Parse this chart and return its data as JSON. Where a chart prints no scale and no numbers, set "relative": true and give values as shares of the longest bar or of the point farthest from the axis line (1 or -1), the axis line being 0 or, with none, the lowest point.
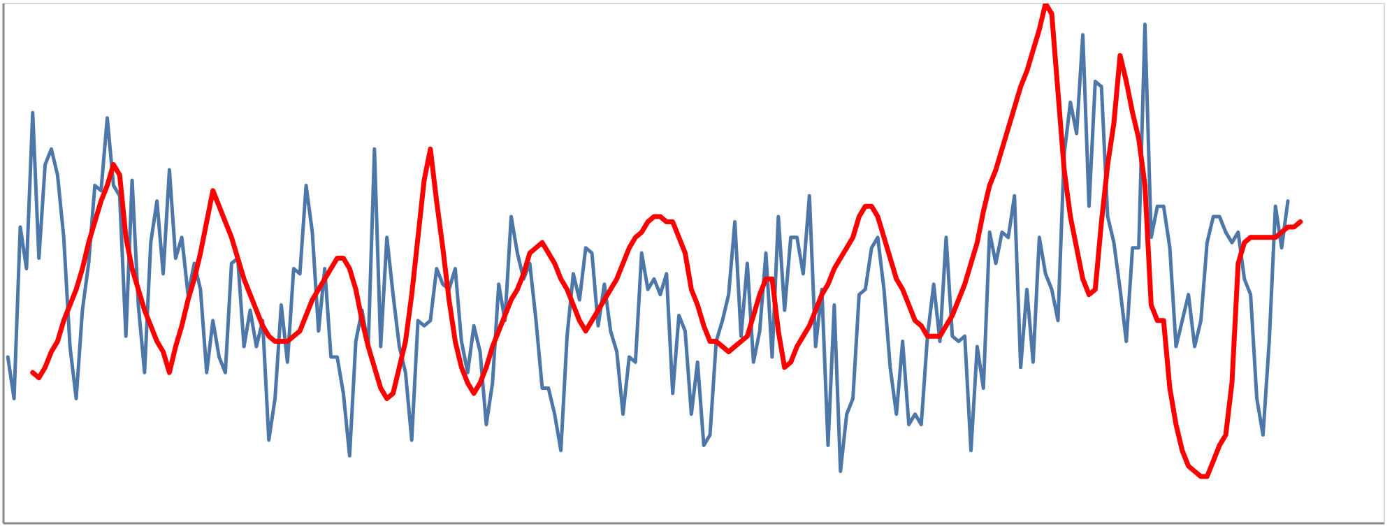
{
  "chart_data": {
    "type": "line",
    "relative": true,
    "tick_labels": false,
    "categories": [
      null,
      null,
      null,
      null,
      null,
      null,
      null,
      null,
      null,
      null,
      null,
      null,
      null,
      null,
      null,
      null,
      null,
      null,
      null,
      null,
      null,
      null,
      null,
      null,
      null,
      null,
      null,
      null,
      null,
      null,
      null,
      null,
      null,
      null,
      null,
      null,
      null,
      null,
      null,
      null,
      null,
      null,
      null,
      null,
      null,
      null,
      null,
      null,
      null,
      null,
      null,
      null,
      null,
      null,
      null,
      null,
      null,
      null,
      null,
      null,
      null,
      null,
      null,
      null,
      null,
      null,
      null,
      null,
      null,
      null,
      null,
      null,
      null,
      null,
      null,
      null,
      null,
      null,
      null,
      null,
      null,
      null,
      null,
      null,
      null,
      null,
      null,
      null,
      null,
      null,
      null,
      null,
      null,
      null,
      null,
      null,
      null,
      null,
      null,
      null,
      null,
      null,
      null,
      null,
      null,
      null,
      null,
      null,
      null,
      null,
      null,
      null,
      null,
      null,
      null,
      null,
      null,
      null,
      null,
      null,
      null,
      null,
      null,
      null,
      null,
      null,
      null,
      null,
      null,
      null,
      null,
      null,
      null,
      null,
      null,
      null,
      null,
      null,
      null,
      null,
      null,
      null,
      null,
      null,
      null,
      null,
      null,
      null,
      null,
      null,
      null,
      null,
      null,
      null,
      null,
      null,
      null,
      null,
      null,
      null,
      null,
      null,
      null,
      null,
      null,
      null,
      null,
      null,
      null,
      null,
      null,
      null,
      null,
      null,
      null,
      null,
      null,
      null,
      null,
      null,
      null,
      null,
      null,
      null,
      null,
      null,
      null,
      null,
      null,
      null,
      null,
      null,
      null,
      null,
      null,
      null,
      null,
      null,
      null,
      null,
      null,
      null,
      null,
      null,
      null,
      null,
      null,
      null,
      null
    ],
    "series": [
      {
        "color": "#4e77a9",
        "values": [
          0.32,
          0.24,
          0.57,
          0.49,
          0.79,
          0.51,
          0.69,
          0.72,
          0.67,
          0.55,
          0.34,
          0.24,
          0.41,
          0.5,
          0.65,
          0.64,
          0.78,
          0.65,
          0.63,
          0.36,
          0.66,
          0.42,
          0.29,
          0.54,
          0.62,
          0.48,
          0.68,
          0.51,
          0.55,
          0.44,
          0.5,
          0.45,
          0.29,
          0.39,
          0.32,
          0.29,
          0.5,
          0.51,
          0.34,
          0.41,
          0.34,
          0.39,
          0.16,
          0.24,
          0.42,
          0.31,
          0.49,
          0.48,
          0.65,
          0.56,
          0.37,
          0.49,
          0.32,
          0.32,
          0.25,
          0.13,
          0.35,
          0.41,
          0.34,
          0.72,
          0.34,
          0.55,
          0.44,
          0.34,
          0.29,
          0.16,
          0.39,
          0.38,
          0.39,
          0.49,
          0.46,
          0.45,
          0.49,
          0.35,
          0.29,
          0.38,
          0.33,
          0.19,
          0.27,
          0.46,
          0.39,
          0.59,
          0.52,
          0.47,
          0.5,
          0.39,
          0.26,
          0.26,
          0.21,
          0.14,
          0.36,
          0.48,
          0.43,
          0.53,
          0.52,
          0.38,
          0.46,
          0.37,
          0.33,
          0.21,
          0.32,
          0.31,
          0.52,
          0.45,
          0.47,
          0.44,
          0.48,
          0.25,
          0.4,
          0.37,
          0.21,
          0.31,
          0.15,
          0.17,
          0.35,
          0.39,
          0.44,
          0.58,
          0.36,
          0.5,
          0.31,
          0.37,
          0.52,
          0.32,
          0.59,
          0.41,
          0.55,
          0.55,
          0.48,
          0.63,
          0.34,
          0.45,
          0.15,
          0.42,
          0.1,
          0.21,
          0.24,
          0.44,
          0.45,
          0.53,
          0.55,
          0.45,
          0.3,
          0.21,
          0.35,
          0.19,
          0.21,
          0.19,
          0.36,
          0.46,
          0.35,
          0.55,
          0.36,
          0.35,
          0.36,
          0.14,
          0.34,
          0.26,
          0.56,
          0.5,
          0.56,
          0.55,
          0.63,
          0.3,
          0.45,
          0.31,
          0.55,
          0.48,
          0.45,
          0.39,
          0.71,
          0.81,
          0.75,
          0.94,
          0.61,
          0.85,
          0.84,
          0.59,
          0.54,
          0.45,
          0.35,
          0.53,
          0.53,
          0.96,
          0.55,
          0.61,
          0.61,
          0.53,
          0.34,
          0.39,
          0.44,
          0.34,
          0.39,
          0.54,
          0.59,
          0.59,
          0.56,
          0.54,
          0.56,
          0.47,
          0.44,
          0.24,
          0.17,
          0.35,
          0.61,
          0.53,
          0.62,
          null,
          null
        ]
      },
      {
        "color": "#ff0000",
        "values": [
          null,
          null,
          null,
          null,
          0.29,
          0.28,
          0.3,
          0.33,
          0.35,
          0.39,
          0.42,
          0.45,
          0.49,
          0.54,
          0.58,
          0.62,
          0.65,
          0.69,
          0.67,
          0.55,
          0.49,
          0.45,
          0.41,
          0.38,
          0.35,
          0.33,
          0.29,
          0.34,
          0.38,
          0.43,
          0.47,
          0.52,
          0.58,
          0.64,
          0.61,
          0.58,
          0.55,
          0.51,
          0.47,
          0.44,
          0.41,
          0.38,
          0.36,
          0.35,
          0.35,
          0.35,
          0.36,
          0.37,
          0.4,
          0.43,
          0.45,
          0.47,
          0.49,
          0.51,
          0.51,
          0.49,
          0.45,
          0.39,
          0.34,
          0.3,
          0.26,
          0.24,
          0.25,
          0.3,
          0.35,
          0.44,
          0.55,
          0.66,
          0.72,
          0.62,
          0.53,
          0.43,
          0.35,
          0.3,
          0.27,
          0.25,
          0.27,
          0.3,
          0.34,
          0.37,
          0.4,
          0.43,
          0.45,
          0.48,
          0.52,
          0.53,
          0.54,
          0.52,
          0.5,
          0.47,
          0.45,
          0.42,
          0.39,
          0.37,
          0.39,
          0.41,
          0.43,
          0.45,
          0.47,
          0.5,
          0.53,
          0.55,
          0.56,
          0.58,
          0.59,
          0.59,
          0.58,
          0.58,
          0.55,
          0.52,
          0.45,
          0.42,
          0.38,
          0.35,
          0.35,
          0.34,
          0.33,
          0.34,
          0.35,
          0.36,
          0.4,
          0.44,
          0.47,
          0.47,
          0.37,
          0.3,
          0.31,
          0.34,
          0.36,
          0.38,
          0.41,
          0.44,
          0.46,
          0.49,
          0.51,
          0.53,
          0.55,
          0.59,
          0.61,
          0.61,
          0.59,
          0.55,
          0.51,
          0.47,
          0.45,
          0.42,
          0.39,
          0.38,
          0.36,
          0.36,
          0.36,
          0.38,
          0.4,
          0.43,
          0.46,
          0.5,
          0.54,
          0.6,
          0.65,
          0.68,
          0.72,
          0.76,
          0.8,
          0.84,
          0.87,
          0.91,
          0.95,
          1.0,
          0.98,
          0.83,
          0.68,
          0.59,
          0.53,
          0.47,
          0.44,
          0.45,
          0.58,
          0.69,
          0.77,
          0.9,
          0.85,
          0.79,
          0.74,
          0.65,
          0.42,
          0.39,
          0.39,
          0.26,
          0.19,
          0.14,
          0.11,
          0.1,
          0.09,
          0.09,
          0.12,
          0.15,
          0.17,
          0.27,
          0.5,
          0.54,
          0.55,
          0.55,
          0.55,
          0.55,
          0.55,
          0.56,
          0.57,
          0.57,
          0.58
        ]
      }
    ]
  }
}
